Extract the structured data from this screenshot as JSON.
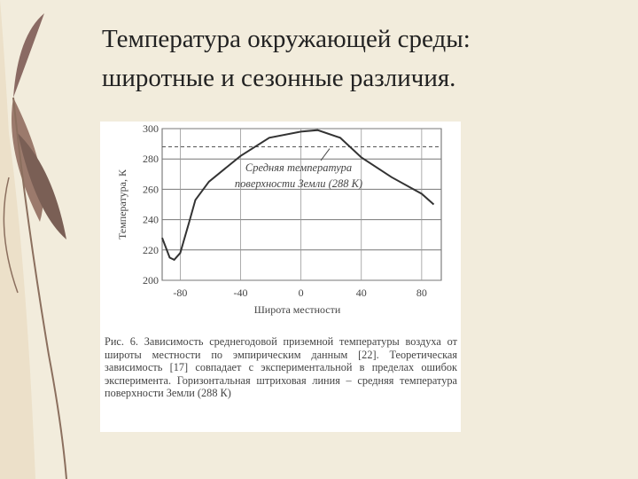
{
  "title": [
    "Температура окружающей среды:",
    "широтные и сезонные различия."
  ],
  "chart_data": {
    "type": "line",
    "y_label": "Температура, К",
    "x_label": "Широта местности",
    "x": [
      -92,
      -87,
      -84,
      -80,
      -74,
      -70,
      -61,
      -40,
      -21,
      0,
      11,
      26,
      40,
      60,
      80,
      88
    ],
    "series": [
      {
        "name": "Температура",
        "color": "#333333",
        "values": [
          228,
          215,
          213.5,
          218,
          238.6,
          253,
          265,
          282,
          294,
          298,
          299,
          294,
          281,
          268,
          257,
          250
        ]
      }
    ],
    "xlim": [
      -92,
      93
    ],
    "ylim": [
      200,
      300
    ],
    "xticks": [
      -80,
      -40,
      0,
      40,
      80
    ],
    "yticks": [
      200,
      220,
      240,
      260,
      280,
      300
    ],
    "grid": true,
    "mean_line": 288,
    "annotation": [
      "Средняя температура",
      "поверхности Земли (288 К)"
    ]
  },
  "caption": "Рис. 6. Зависимость среднегодовой приземной температуры воздуха от широты местности по эмпирическим данным [22]. Теоретическая зависимость [17] совпадает с экспериментальной в пределах ошибок эксперимента. Горизонтальная штриховая линия – средняя температура поверхности Земли (288 К)"
}
